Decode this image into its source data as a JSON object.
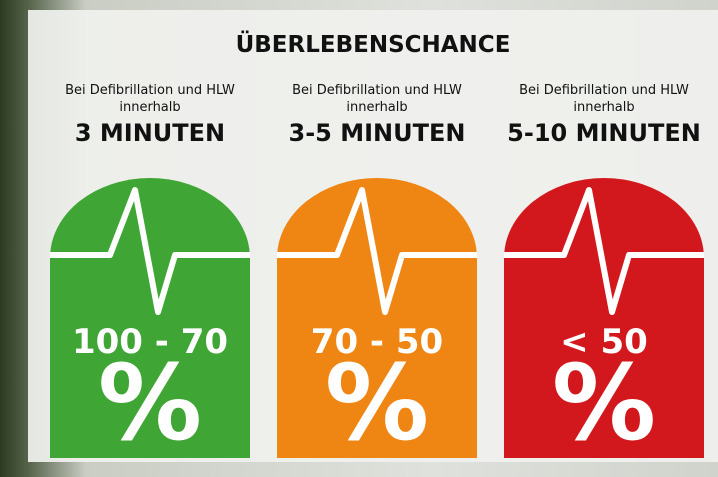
{
  "header": {
    "title": "ÜBERLEBENSCHANCE"
  },
  "columns": [
    {
      "subtitle": "Bei Defibrillation und HLW innerhalb",
      "time": "3 MINUTEN",
      "range": "100 - 70",
      "unit": "%"
    },
    {
      "subtitle": "Bei Defibrillation und HLW innerhalb",
      "time": "3-5 MINUTEN",
      "range": "70 - 50",
      "unit": "%"
    },
    {
      "subtitle": "Bei Defibrillation und HLW innerhalb",
      "time": "5-10 MINUTEN",
      "range": "< 50",
      "unit": "%"
    }
  ]
}
